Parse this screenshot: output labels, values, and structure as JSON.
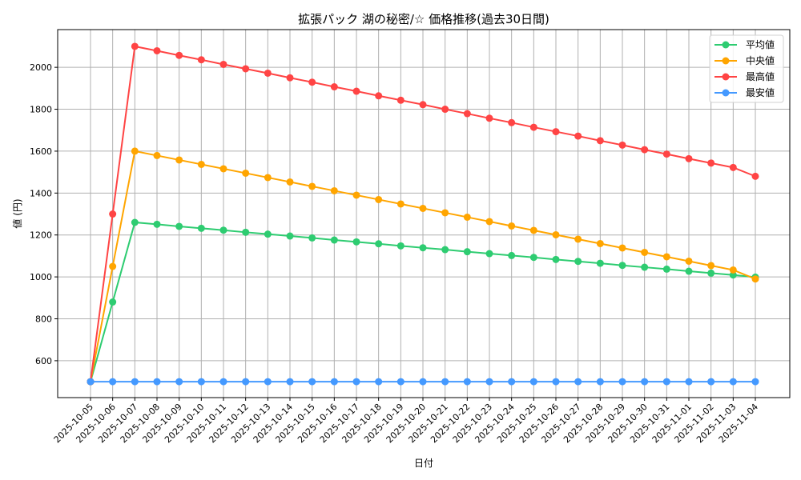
{
  "chart_data": {
    "type": "line",
    "title": "拡張パック 湖の秘密/☆ 価格推移(過去30日間)",
    "xlabel": "日付",
    "ylabel": "値 (円)",
    "ylim": [
      424,
      2180
    ],
    "yticks": [
      600,
      800,
      1000,
      1200,
      1400,
      1600,
      1800,
      2000
    ],
    "grid": true,
    "legend_position": "upper right",
    "categories": [
      "2025-10-05",
      "2025-10-06",
      "2025-10-07",
      "2025-10-08",
      "2025-10-09",
      "2025-10-10",
      "2025-10-11",
      "2025-10-12",
      "2025-10-13",
      "2025-10-14",
      "2025-10-15",
      "2025-10-16",
      "2025-10-17",
      "2025-10-18",
      "2025-10-19",
      "2025-10-20",
      "2025-10-21",
      "2025-10-22",
      "2025-10-23",
      "2025-10-24",
      "2025-10-25",
      "2025-10-26",
      "2025-10-27",
      "2025-10-28",
      "2025-10-29",
      "2025-10-30",
      "2025-10-31",
      "2025-11-01",
      "2025-11-02",
      "2025-11-03",
      "2025-11-04"
    ],
    "series": [
      {
        "name": "平均値",
        "color": "#2ecc71",
        "values": [
          500,
          880,
          1260,
          1251,
          1241,
          1232,
          1223,
          1213,
          1204,
          1195,
          1186,
          1176,
          1167,
          1158,
          1148,
          1139,
          1130,
          1120,
          1111,
          1102,
          1093,
          1083,
          1074,
          1065,
          1055,
          1046,
          1037,
          1027,
          1018,
          1009,
          999
        ]
      },
      {
        "name": "中央値",
        "color": "#ffa500",
        "values": [
          500,
          1050,
          1600,
          1579,
          1558,
          1537,
          1516,
          1495,
          1474,
          1453,
          1432,
          1411,
          1390,
          1369,
          1348,
          1327,
          1306,
          1285,
          1264,
          1243,
          1222,
          1201,
          1180,
          1159,
          1138,
          1117,
          1096,
          1075,
          1054,
          1033,
          990
        ]
      },
      {
        "name": "最高値",
        "color": "#ff4444",
        "values": [
          500,
          1300,
          2100,
          2079,
          2057,
          2036,
          2014,
          1993,
          1972,
          1950,
          1929,
          1907,
          1886,
          1864,
          1843,
          1822,
          1800,
          1779,
          1757,
          1736,
          1714,
          1693,
          1672,
          1650,
          1629,
          1607,
          1586,
          1564,
          1543,
          1522,
          1480
        ]
      },
      {
        "name": "最安値",
        "color": "#4499ff",
        "values": [
          500,
          500,
          500,
          500,
          500,
          500,
          500,
          500,
          500,
          500,
          500,
          500,
          500,
          500,
          500,
          500,
          500,
          500,
          500,
          500,
          500,
          500,
          500,
          500,
          500,
          500,
          500,
          500,
          500,
          500,
          500
        ]
      }
    ]
  }
}
